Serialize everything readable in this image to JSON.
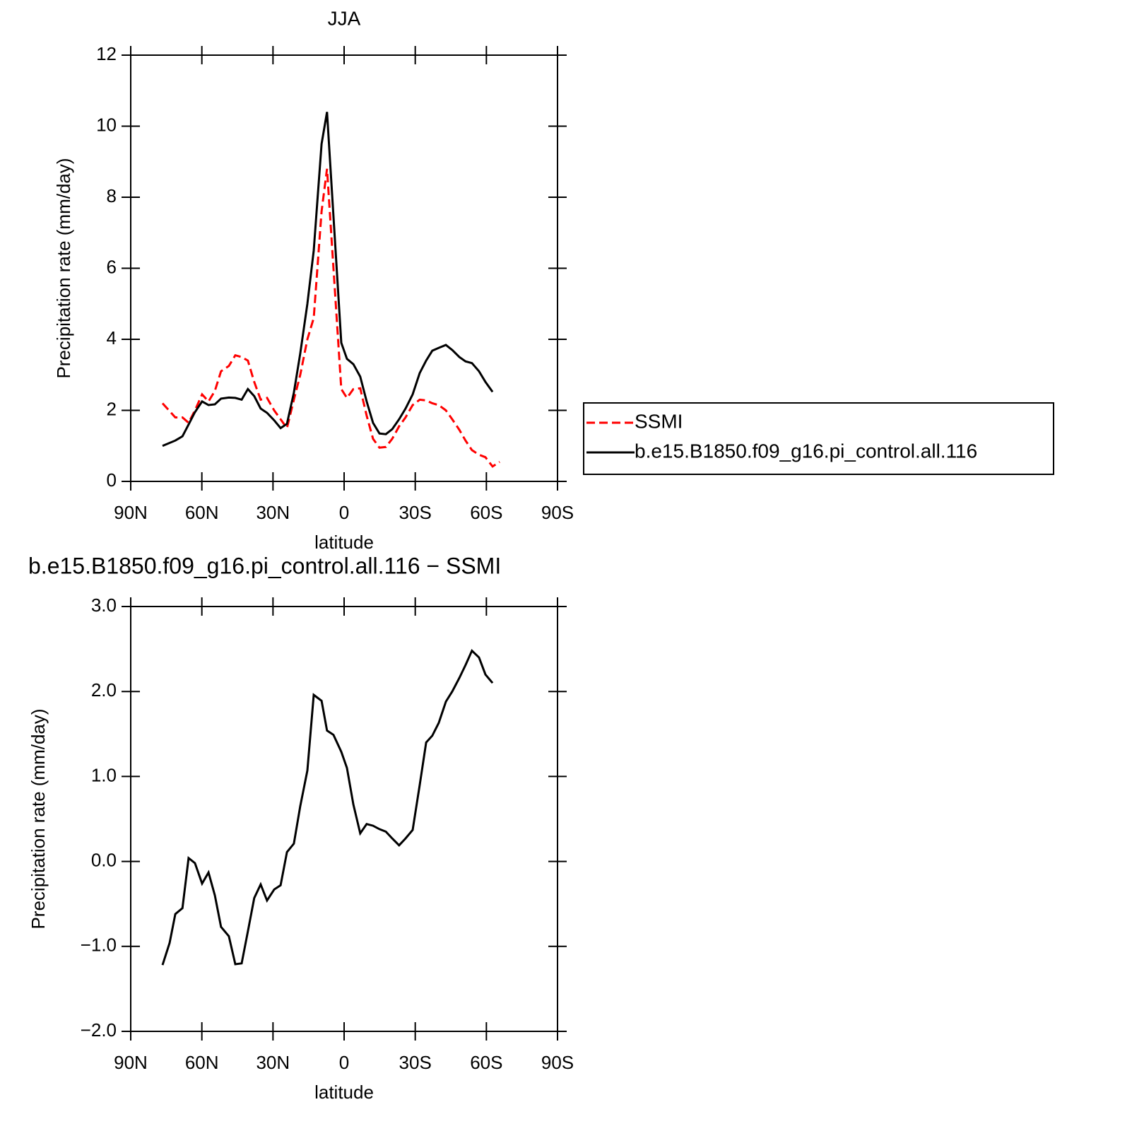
{
  "chart_data": [
    {
      "type": "line",
      "title": "JJA",
      "xlabel": "latitude",
      "ylabel": "Precipitation rate (mm/day)",
      "x": [
        76.6,
        71.2,
        68.2,
        65.6,
        62.9,
        59.9,
        57.2,
        54.5,
        51.9,
        48.6,
        45.9,
        43.2,
        40.6,
        37.9,
        35.2,
        32.5,
        29.5,
        26.8,
        24.1,
        21.2,
        18.5,
        15.5,
        12.8,
        9.5,
        7.2,
        1.2,
        -1.2,
        -3.9,
        -6.8,
        -9.5,
        -12.2,
        -14.9,
        -17.6,
        -20.3,
        -23.2,
        -25.9,
        -28.9,
        -31.9,
        -34.6,
        -37.2,
        -39.9,
        -42.9,
        -45.6,
        -48.6,
        -51.2,
        -53.9,
        -56.9,
        -59.6,
        -62.6,
        -65.6
      ],
      "xlim": [
        90,
        -90
      ],
      "xticks": [
        {
          "value": 90,
          "label": "90N"
        },
        {
          "value": 60,
          "label": "60N"
        },
        {
          "value": 30,
          "label": "30N"
        },
        0,
        {
          "value": -30,
          "label": "30S"
        },
        {
          "value": -60,
          "label": "60S"
        },
        {
          "value": -90,
          "label": "90S"
        }
      ],
      "ylim": [
        0,
        12
      ],
      "yticks": [
        0,
        2,
        4,
        6,
        8,
        10,
        12
      ],
      "legend": "right",
      "series": [
        {
          "name": "SSMI",
          "color": "#ff0000",
          "line_style": "dashed",
          "values": [
            2.2,
            1.8,
            1.8,
            1.65,
            2.0,
            2.45,
            2.25,
            2.55,
            3.1,
            3.25,
            3.55,
            3.5,
            3.4,
            2.8,
            2.3,
            2.35,
            2.0,
            1.75,
            1.5,
            2.3,
            3.0,
            4.0,
            4.6,
            7.6,
            8.8,
            2.6,
            2.35,
            2.6,
            2.62,
            1.85,
            1.2,
            0.95,
            0.97,
            1.2,
            1.55,
            1.8,
            2.15,
            2.3,
            2.28,
            2.2,
            2.15,
            2.0,
            1.75,
            1.45,
            1.15,
            0.88,
            0.75,
            0.68,
            0.42,
            0.55
          ]
        },
        {
          "name": "b.e15.B1850.f09_g16.pi_control.all.116",
          "color": "#000000",
          "line_style": "solid",
          "values": [
            1.0,
            1.15,
            1.27,
            1.6,
            1.95,
            2.25,
            2.15,
            2.17,
            2.33,
            2.36,
            2.35,
            2.3,
            2.6,
            2.4,
            2.05,
            1.93,
            1.72,
            1.5,
            1.62,
            2.5,
            3.6,
            5.0,
            6.5,
            9.5,
            10.4,
            3.9,
            3.45,
            3.3,
            2.95,
            2.25,
            1.65,
            1.35,
            1.33,
            1.47,
            1.75,
            2.05,
            2.45,
            3.05,
            3.4,
            3.68,
            3.76,
            3.84,
            3.7,
            3.5,
            3.38,
            3.33,
            3.1,
            2.8,
            2.52,
            null
          ]
        }
      ]
    },
    {
      "type": "line",
      "title": "b.e15.B1850.f09_g16.pi_control.all.116 − SSMI",
      "xlabel": "latitude",
      "ylabel": "Precipitation rate (mm/day)",
      "x": [
        76.6,
        73.6,
        71.2,
        68.2,
        65.6,
        62.9,
        59.9,
        57.2,
        54.5,
        51.9,
        48.6,
        45.9,
        43.2,
        40.5,
        37.9,
        35.2,
        32.5,
        29.5,
        26.8,
        24.1,
        21.2,
        18.5,
        15.5,
        12.8,
        9.5,
        7.2,
        4.5,
        1.2,
        -1.2,
        -3.9,
        -6.8,
        -9.5,
        -12.2,
        -14.9,
        -17.6,
        -20.3,
        -23.2,
        -25.9,
        -28.9,
        -31.9,
        -34.6,
        -37.2,
        -39.9,
        -42.9,
        -45.6,
        -48.6,
        -51.2,
        -53.9,
        -56.9,
        -59.6,
        -62.6
      ],
      "xlim": [
        90,
        -90
      ],
      "xticks": [
        {
          "value": 90,
          "label": "90N"
        },
        {
          "value": 60,
          "label": "60N"
        },
        {
          "value": 30,
          "label": "30N"
        },
        0,
        {
          "value": -30,
          "label": "30S"
        },
        {
          "value": -60,
          "label": "60S"
        },
        {
          "value": -90,
          "label": "90S"
        }
      ],
      "ylim": [
        -2,
        3
      ],
      "yticks": [
        {
          "value": -2,
          "label": "−2.0"
        },
        {
          "value": -1,
          "label": "−1.0"
        },
        {
          "value": 0,
          "label": "0.0"
        },
        {
          "value": 1,
          "label": "1.0"
        },
        {
          "value": 2,
          "label": "2.0"
        },
        {
          "value": 3,
          "label": "3.0"
        }
      ],
      "series": [
        {
          "color": "#000000",
          "line_style": "solid",
          "values": [
            -1.22,
            -0.96,
            -0.62,
            -0.55,
            0.04,
            -0.02,
            -0.26,
            -0.13,
            -0.4,
            -0.77,
            -0.88,
            -1.21,
            -1.2,
            -0.81,
            -0.43,
            -0.27,
            -0.46,
            -0.33,
            -0.28,
            0.11,
            0.21,
            0.65,
            1.07,
            1.96,
            1.89,
            1.54,
            1.49,
            1.29,
            1.1,
            0.67,
            0.33,
            0.44,
            0.42,
            0.38,
            0.35,
            0.27,
            0.19,
            0.27,
            0.37,
            0.9,
            1.4,
            1.48,
            1.63,
            1.88,
            2.0,
            2.16,
            2.31,
            2.48,
            2.4,
            2.2,
            2.1
          ]
        }
      ]
    }
  ]
}
